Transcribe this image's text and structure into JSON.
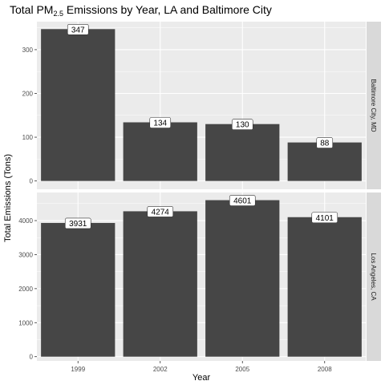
{
  "chart_data": {
    "type": "bar",
    "title_main": "Total PM",
    "title_sub": "2.5",
    "title_rest": " Emissions by Year, LA and Baltimore City",
    "xlabel": "Year",
    "ylabel": "Total Emissions (Tons)",
    "categories": [
      "1999",
      "2002",
      "2005",
      "2008"
    ],
    "colors": {
      "bar": "#464646",
      "panel": "#ebebeb",
      "strip": "#d9d9d9",
      "grid": "#ffffff"
    },
    "panels": [
      {
        "strip": "Baltimore City, MD",
        "values": [
          347,
          134,
          130,
          88
        ],
        "labels": [
          "347",
          "134",
          "130",
          "88"
        ],
        "ylim": [
          -19,
          364
        ],
        "yticks": [
          0,
          100,
          200,
          300
        ],
        "ytick_labels": [
          "0",
          "100",
          "200",
          "300"
        ]
      },
      {
        "strip": "Los Angeles, CA",
        "values": [
          3931,
          4274,
          4601,
          4101
        ],
        "labels": [
          "3931",
          "4274",
          "4601",
          "4101"
        ],
        "ylim": [
          -125,
          4826
        ],
        "yticks": [
          0,
          1000,
          2000,
          3000,
          4000
        ],
        "ytick_labels": [
          "0",
          "1000",
          "2000",
          "3000",
          "4000"
        ]
      }
    ]
  }
}
